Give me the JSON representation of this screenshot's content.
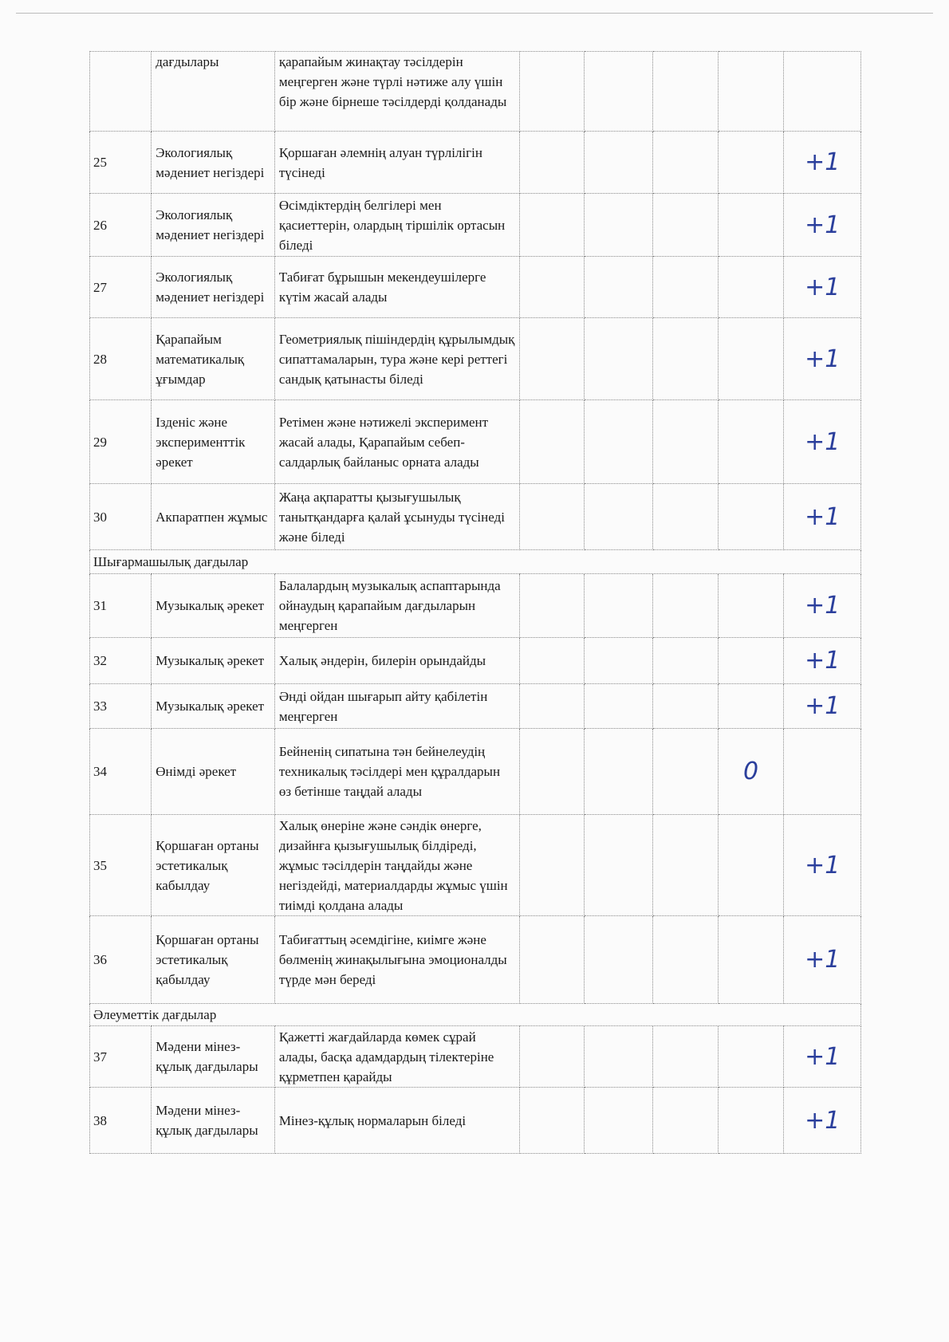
{
  "ink_color": "#2b3f9c",
  "rows": [
    {
      "type": "row",
      "num": "",
      "area": "дағдылары",
      "desc": "қарапайым жинақтау тәсілдерін меңгерген және түрлі нәтиже алу үшін бір және бірнеше тәсілдерді қолданады",
      "mark": "",
      "mark_col": 5,
      "h": 100
    },
    {
      "type": "row",
      "num": "25",
      "area": "Экологиялық мәдениет негіздері",
      "desc": "Қоршаған әлемнің алуан түрлілігін түсінеді",
      "mark": "+1",
      "mark_col": 5,
      "h": 78
    },
    {
      "type": "row",
      "num": "26",
      "area": "Экологиялық мәдениет негіздері",
      "desc": "Өсімдіктердің белгілері мен қасиеттерін, олардың тіршілік ортасын біледі",
      "mark": "+1",
      "mark_col": 5,
      "h": 79
    },
    {
      "type": "row",
      "num": "27",
      "area": "Экологиялық мәдениет негіздері",
      "desc": "Табиғат бұрышын мекендеушілерге күтім жасай алады",
      "mark": "+1",
      "mark_col": 5,
      "h": 77
    },
    {
      "type": "row",
      "num": "28",
      "area": "Қарапайым математикалық ұғымдар",
      "desc": "Геометриялық пішіндердің құрылымдық сипаттамаларын, тура және кері реттегі сандық қатынасты біледі",
      "mark": "+1",
      "mark_col": 5,
      "h": 103
    },
    {
      "type": "row",
      "num": "29",
      "area": "Ізденіс және эксперименттік әрекет",
      "desc": "Ретімен және нәтижелі эксперимент жасай алады, Қарапайым себеп-салдарлық байланыс орната алады",
      "mark": "+1",
      "mark_col": 5,
      "h": 105
    },
    {
      "type": "row",
      "num": "30",
      "area": "Акпаратпен жұмыс",
      "desc": "Жаңа ақпаратты қызығушылық танытқандарға қалай ұсынуды түсінеді және біледі",
      "mark": "+1",
      "mark_col": 5,
      "h": 83
    },
    {
      "type": "section",
      "title": "Шығармашылық дағдылар",
      "h": 30
    },
    {
      "type": "row",
      "num": "31",
      "area": "Музыкалық әрекет",
      "desc": "Балалардың музыкалық аспаптарында ойнаудың қарапайым дағдыларын меңгерген",
      "mark": "+1",
      "mark_col": 5,
      "h": 80
    },
    {
      "type": "row",
      "num": "32",
      "area": "Музыкалық әрекет",
      "desc": "Халық әндерін, билерін орындайды",
      "mark": "+1",
      "mark_col": 5,
      "h": 58
    },
    {
      "type": "row",
      "num": "33",
      "area": "Музыкалық әрекет",
      "desc": "Әнді ойдан шығарып айту қабілетін меңгерген",
      "mark": "+1",
      "mark_col": 5,
      "h": 56
    },
    {
      "type": "row",
      "num": "34",
      "area": "Өнімді әрекет",
      "desc": "Бейненің сипатына тән бейнелеудің техникалық тәсілдері мен құралдарын өз бетінше таңдай алады",
      "mark": "0",
      "mark_col": 4,
      "h": 108
    },
    {
      "type": "row",
      "num": "35",
      "area": "Қоршаған ортаны эстетикалық кабылдау",
      "desc": "Халық өнеріне және сәндік өнерге, дизайнға қызығушылық білдіреді, жұмыс тәсілдерін таңдайды және негіздейді, материалдарды жұмыс үшін тиімді қолдана алады",
      "mark": "+1",
      "mark_col": 5,
      "h": 127
    },
    {
      "type": "row",
      "num": "36",
      "area": "Қоршаған ортаны эстетикалық қабылдау",
      "desc": "Табиғаттың әсемдігіне, киімге және бөлменің жинақылығына эмоционалды түрде мән береді",
      "mark": "+1",
      "mark_col": 5,
      "h": 110
    },
    {
      "type": "section",
      "title": "Әлеуметтік дағдылар",
      "h": 28
    },
    {
      "type": "row",
      "num": "37",
      "area": "Мәдени мінез-құлық дағдылары",
      "desc": "Қажетті жағдайларда көмек сұрай алады, басқа адамдардың тілектеріне құрметпен қарайды",
      "mark": "+1",
      "mark_col": 5,
      "h": 77
    },
    {
      "type": "row",
      "num": "38",
      "area": "Мәдени мінез-құлық дағдылары",
      "desc": "Мінез-құлық нормаларын біледі",
      "mark": "+1",
      "mark_col": 5,
      "h": 83
    }
  ]
}
